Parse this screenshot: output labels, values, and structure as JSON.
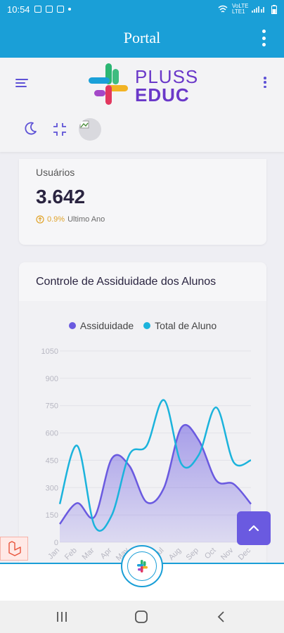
{
  "status": {
    "time": "10:54",
    "network": "VoLTE LTE1"
  },
  "titlebar": {
    "title": "Portal"
  },
  "header": {
    "logo_line1": "PLUSS",
    "logo_line2": "EDUC"
  },
  "users_card": {
    "label": "Usuários",
    "value": "3.642",
    "change": "0.9%",
    "period": "Ultimo Ano"
  },
  "attendance_card": {
    "title": "Controle de Assiduidade dos Alunos"
  },
  "colors": {
    "accent": "#1a9fd7",
    "purple": "#6a5ae0",
    "series1": "#6a5ae0",
    "series2": "#1bb3dc"
  },
  "chart_data": {
    "type": "area",
    "title": "",
    "categories": [
      "Jan",
      "Feb",
      "Mar",
      "Apr",
      "May",
      "Jun",
      "Jul",
      "Aug",
      "Sep",
      "Oct",
      "Nov",
      "Dec"
    ],
    "series": [
      {
        "name": "Assiduidade",
        "values": [
          100,
          215,
          140,
          460,
          420,
          220,
          300,
          630,
          560,
          340,
          320,
          210
        ]
      },
      {
        "name": "Total de Aluno",
        "values": [
          210,
          530,
          90,
          150,
          480,
          530,
          780,
          430,
          480,
          740,
          440,
          450
        ]
      }
    ],
    "yticks": [
      "1050",
      "900",
      "750",
      "600",
      "450",
      "300",
      "150",
      "0"
    ],
    "ylim": [
      0,
      1050
    ],
    "grid": true,
    "legend": "top"
  },
  "icons": {
    "menu": "hamburger-icon",
    "moon": "moon-icon",
    "minimize": "minimize-icon",
    "scroll_top": "chevron-up-icon",
    "home": "home-icon"
  }
}
